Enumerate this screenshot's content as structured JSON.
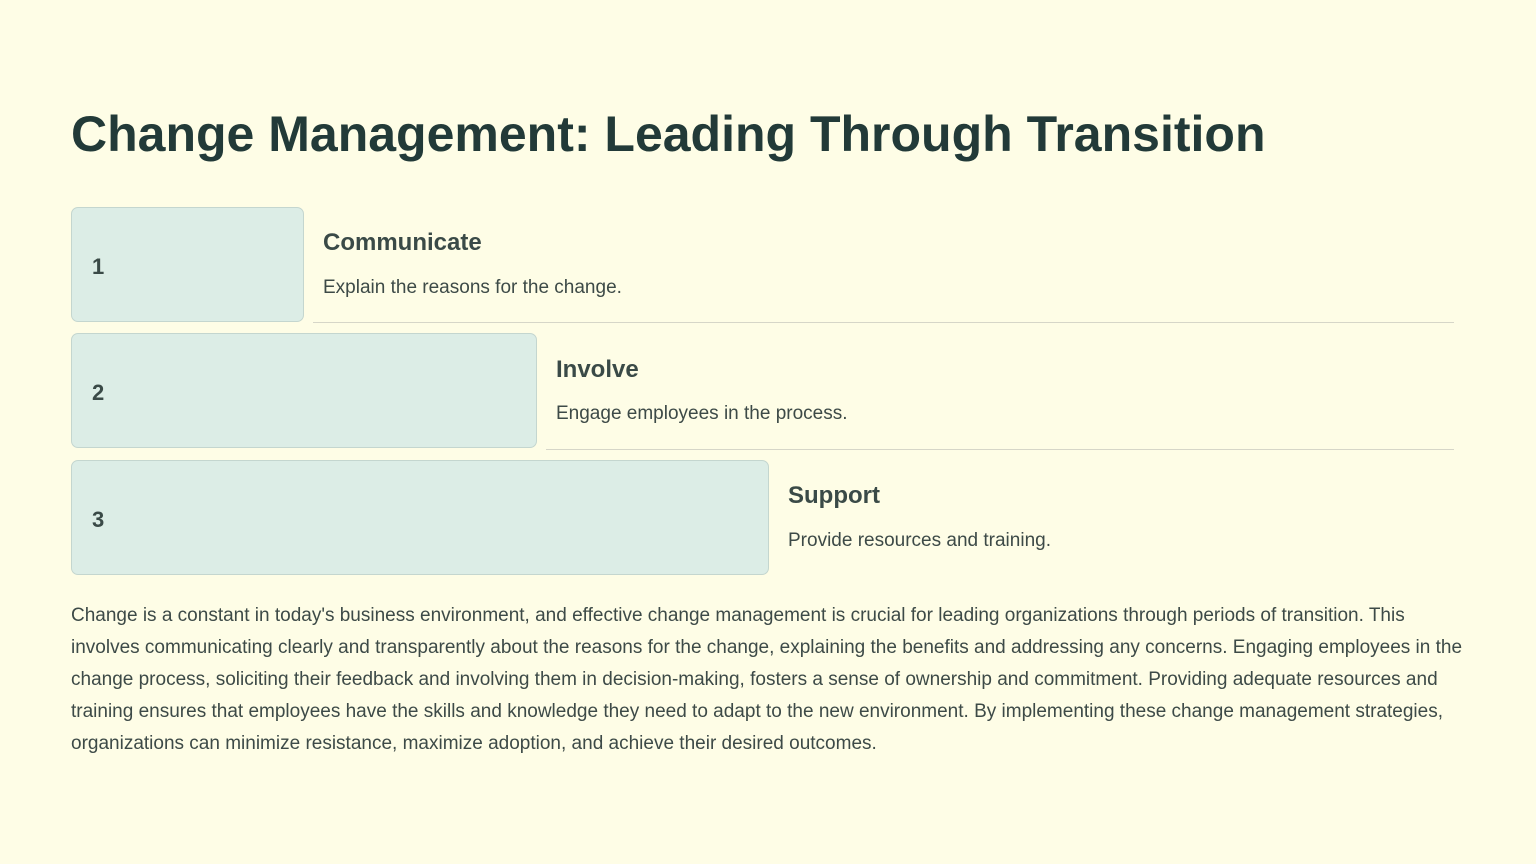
{
  "title": "Change Management: Leading Through Transition",
  "steps": [
    {
      "number": "1",
      "title": "Communicate",
      "description": "Explain the reasons for the change."
    },
    {
      "number": "2",
      "title": "Involve",
      "description": "Engage employees in the process."
    },
    {
      "number": "3",
      "title": "Support",
      "description": "Provide resources and training."
    }
  ],
  "paragraph": "Change is a constant in today's business environment, and effective change management is crucial for leading organizations through periods of transition. This involves communicating clearly and transparently about the reasons for the change, explaining the benefits and addressing any concerns. Engaging employees in the change process, soliciting their feedback and involving them in decision-making, fosters a sense of ownership and commitment. Providing adequate resources and training ensures that employees have the skills and knowledge they need to adapt to the new environment. By implementing these change management strategies, organizations can minimize resistance, maximize adoption, and achieve their desired outcomes."
}
